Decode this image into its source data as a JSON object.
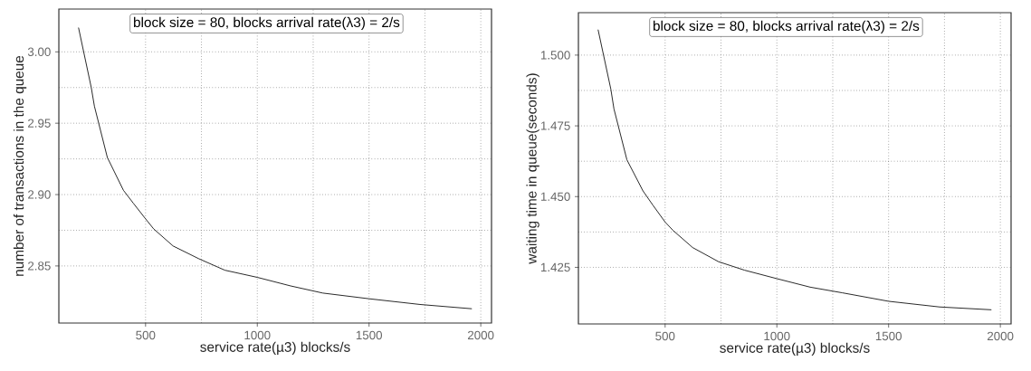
{
  "chart_data": [
    {
      "type": "line",
      "xlabel": "service rate(µ3) blocks/s",
      "ylabel": "number of transactions in the queue",
      "annotations": [
        "block size = 80, blocks arrival rate(λ3) = 2/s"
      ],
      "grid": true,
      "xlim": [
        112,
        2048
      ],
      "ylim": [
        2.81,
        3.03
      ],
      "xticks": [
        500,
        1000,
        1500,
        2000
      ],
      "yticks": [
        {
          "value": 2.85,
          "label": "2.85"
        },
        {
          "value": 2.9,
          "label": "2.90"
        },
        {
          "value": 2.95,
          "label": "2.95"
        },
        {
          "value": 3.0,
          "label": "3.00"
        }
      ],
      "x": [
        200,
        257,
        271,
        329,
        401,
        445,
        500,
        536,
        623,
        739,
        855,
        1000,
        1149,
        1293,
        1500,
        1728,
        1960
      ],
      "series": [
        {
          "color": "#1a1a1a",
          "values": [
            3.017,
            2.975,
            2.962,
            2.926,
            2.903,
            2.894,
            2.883,
            2.876,
            2.864,
            2.855,
            2.847,
            2.842,
            2.836,
            2.831,
            2.827,
            2.823,
            2.82
          ]
        }
      ]
    },
    {
      "type": "line",
      "xlabel": "service rate(µ3) blocks/s",
      "ylabel": "waiting time in queue(seconds)",
      "annotations": [
        "block size = 80, blocks arrival rate(λ3) = 2/s"
      ],
      "grid": true,
      "xlim": [
        112,
        2048
      ],
      "ylim": [
        1.405,
        1.515
      ],
      "xticks": [
        500,
        1000,
        1500,
        2000
      ],
      "yticks": [
        {
          "value": 1.425,
          "label": "1.425"
        },
        {
          "value": 1.45,
          "label": "1.450"
        },
        {
          "value": 1.475,
          "label": "1.475"
        },
        {
          "value": 1.5,
          "label": "1.500"
        }
      ],
      "x": [
        200,
        257,
        271,
        329,
        401,
        445,
        500,
        536,
        623,
        739,
        855,
        1000,
        1149,
        1293,
        1500,
        1728,
        1960
      ],
      "series": [
        {
          "color": "#1a1a1a",
          "values": [
            1.509,
            1.488,
            1.481,
            1.463,
            1.452,
            1.447,
            1.441,
            1.438,
            1.432,
            1.427,
            1.424,
            1.421,
            1.418,
            1.416,
            1.413,
            1.411,
            1.41
          ]
        }
      ]
    }
  ]
}
